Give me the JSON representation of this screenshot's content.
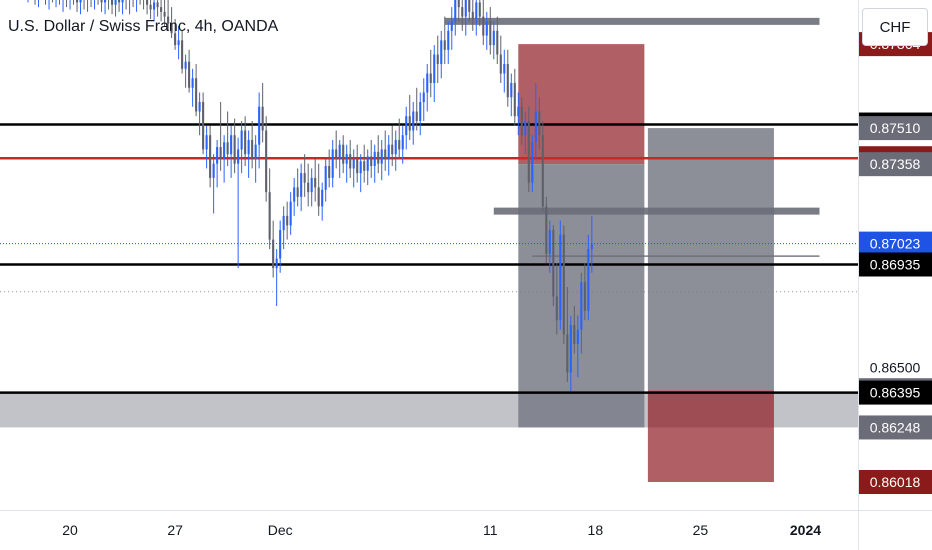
{
  "header": {
    "title": "U.S. Dollar / Swiss Franc, 4h, OANDA"
  },
  "price_axis": {
    "currency_label": "CHF"
  },
  "colors": {
    "bull": "#2962ff",
    "bear": "#5d606b",
    "level_black": "#000000",
    "level_red": "#c62828",
    "zone_gray": "#787b86",
    "zone_red": "#8e1b22",
    "last_price": "#1e53e5"
  },
  "chart_data": {
    "type": "candlestick",
    "title": "U.S. Dollar / Swiss Franc, 4h, OANDA",
    "xlabel": "",
    "ylabel": "",
    "ylim": [
      0.859,
      0.8805
    ],
    "x_ticks": [
      {
        "label": "20",
        "i": 18
      },
      {
        "label": "27",
        "i": 48
      },
      {
        "label": "Dec",
        "i": 78
      },
      {
        "label": "11",
        "i": 138
      },
      {
        "label": "18",
        "i": 168
      },
      {
        "label": "25",
        "i": 198
      },
      {
        "label": "2024",
        "i": 228
      }
    ],
    "x_index_range": [
      -2,
      243
    ],
    "last_price": 0.87023,
    "price_labels": [
      {
        "price": 0.87864,
        "style": "red"
      },
      {
        "price": 0.87525,
        "style": "black"
      },
      {
        "price": 0.8751,
        "style": "gray"
      },
      {
        "price": 0.87383,
        "style": "red"
      },
      {
        "price": 0.87358,
        "style": "gray"
      },
      {
        "price": 0.87023,
        "style": "blue"
      },
      {
        "price": 0.86935,
        "style": "black"
      },
      {
        "price": 0.865,
        "style": "plain"
      },
      {
        "price": 0.86405,
        "style": "gray"
      },
      {
        "price": 0.86395,
        "style": "black"
      },
      {
        "price": 0.86248,
        "style": "gray"
      },
      {
        "price": 0.86018,
        "style": "red"
      }
    ],
    "horizontal_levels": [
      {
        "price": 0.87525,
        "color": "black"
      },
      {
        "price": 0.87383,
        "color": "red"
      },
      {
        "price": 0.86935,
        "color": "black"
      },
      {
        "price": 0.86395,
        "color": "black"
      }
    ],
    "zones": [
      {
        "i1": 146,
        "i2": 182,
        "top": 0.87864,
        "bottom": 0.87358,
        "kind": "red"
      },
      {
        "i1": 146,
        "i2": 182,
        "top": 0.87358,
        "bottom": 0.86248,
        "kind": "gray"
      },
      {
        "i1": 183,
        "i2": 219,
        "top": 0.8751,
        "bottom": 0.86405,
        "kind": "gray"
      },
      {
        "i1": 183,
        "i2": 219,
        "top": 0.86405,
        "bottom": 0.86018,
        "kind": "red"
      },
      {
        "i1": -2,
        "i2": 243,
        "top": 0.86395,
        "bottom": 0.86248,
        "kind": "gray-band"
      }
    ],
    "segments": [
      {
        "i1": 125,
        "i2": 232,
        "price": 0.8796,
        "kind": "gray-thick"
      },
      {
        "i1": 139,
        "i2": 232,
        "price": 0.8716,
        "kind": "gray-thick"
      },
      {
        "i1": 150,
        "i2": 232,
        "price": 0.8697,
        "kind": "gray-thin"
      }
    ],
    "candles": [
      {
        "o": 0.881,
        "h": 0.8818,
        "l": 0.8806,
        "c": 0.8812
      },
      {
        "o": 0.8812,
        "h": 0.882,
        "l": 0.8808,
        "c": 0.8815
      },
      {
        "o": 0.8815,
        "h": 0.8822,
        "l": 0.8809,
        "c": 0.8811
      },
      {
        "o": 0.8811,
        "h": 0.8819,
        "l": 0.8807,
        "c": 0.8816
      },
      {
        "o": 0.8816,
        "h": 0.8823,
        "l": 0.881,
        "c": 0.8813
      },
      {
        "o": 0.8813,
        "h": 0.882,
        "l": 0.8806,
        "c": 0.8809
      },
      {
        "o": 0.8809,
        "h": 0.8816,
        "l": 0.8804,
        "c": 0.8812
      },
      {
        "o": 0.8812,
        "h": 0.8819,
        "l": 0.8807,
        "c": 0.881
      },
      {
        "o": 0.881,
        "h": 0.8817,
        "l": 0.8803,
        "c": 0.8808
      },
      {
        "o": 0.8808,
        "h": 0.8815,
        "l": 0.8802,
        "c": 0.8811
      },
      {
        "o": 0.8811,
        "h": 0.8818,
        "l": 0.8805,
        "c": 0.8809
      },
      {
        "o": 0.8809,
        "h": 0.8816,
        "l": 0.8803,
        "c": 0.8806
      },
      {
        "o": 0.8806,
        "h": 0.8814,
        "l": 0.8801,
        "c": 0.881
      },
      {
        "o": 0.881,
        "h": 0.8817,
        "l": 0.8804,
        "c": 0.8807
      },
      {
        "o": 0.8807,
        "h": 0.8814,
        "l": 0.8802,
        "c": 0.8809
      },
      {
        "o": 0.8809,
        "h": 0.8815,
        "l": 0.8803,
        "c": 0.8805
      },
      {
        "o": 0.8805,
        "h": 0.8812,
        "l": 0.88,
        "c": 0.8808
      },
      {
        "o": 0.8808,
        "h": 0.8814,
        "l": 0.8802,
        "c": 0.8806
      },
      {
        "o": 0.8806,
        "h": 0.8813,
        "l": 0.8801,
        "c": 0.8809
      },
      {
        "o": 0.8809,
        "h": 0.8815,
        "l": 0.8803,
        "c": 0.8806
      },
      {
        "o": 0.8806,
        "h": 0.8812,
        "l": 0.88,
        "c": 0.8804
      },
      {
        "o": 0.8804,
        "h": 0.8811,
        "l": 0.8799,
        "c": 0.8807
      },
      {
        "o": 0.8807,
        "h": 0.8813,
        "l": 0.8801,
        "c": 0.8805
      },
      {
        "o": 0.8805,
        "h": 0.8812,
        "l": 0.88,
        "c": 0.8808
      },
      {
        "o": 0.8808,
        "h": 0.8814,
        "l": 0.8802,
        "c": 0.8806
      },
      {
        "o": 0.8806,
        "h": 0.8813,
        "l": 0.8801,
        "c": 0.8809
      },
      {
        "o": 0.8809,
        "h": 0.8815,
        "l": 0.8803,
        "c": 0.8806
      },
      {
        "o": 0.8806,
        "h": 0.8812,
        "l": 0.88,
        "c": 0.8804
      },
      {
        "o": 0.8804,
        "h": 0.8811,
        "l": 0.8799,
        "c": 0.8807
      },
      {
        "o": 0.8807,
        "h": 0.8813,
        "l": 0.8801,
        "c": 0.8805
      },
      {
        "o": 0.8805,
        "h": 0.8811,
        "l": 0.8799,
        "c": 0.8803
      },
      {
        "o": 0.8803,
        "h": 0.881,
        "l": 0.8798,
        "c": 0.8806
      },
      {
        "o": 0.8806,
        "h": 0.8812,
        "l": 0.88,
        "c": 0.8804
      },
      {
        "o": 0.8804,
        "h": 0.8811,
        "l": 0.8799,
        "c": 0.8807
      },
      {
        "o": 0.8807,
        "h": 0.8813,
        "l": 0.8801,
        "c": 0.8805
      },
      {
        "o": 0.8805,
        "h": 0.8811,
        "l": 0.8799,
        "c": 0.8808
      },
      {
        "o": 0.8808,
        "h": 0.8814,
        "l": 0.8802,
        "c": 0.8806
      },
      {
        "o": 0.8806,
        "h": 0.8812,
        "l": 0.88,
        "c": 0.8809
      },
      {
        "o": 0.8809,
        "h": 0.8815,
        "l": 0.8803,
        "c": 0.8807
      },
      {
        "o": 0.8807,
        "h": 0.8813,
        "l": 0.8801,
        "c": 0.8805
      },
      {
        "o": 0.8805,
        "h": 0.8811,
        "l": 0.8799,
        "c": 0.8803
      },
      {
        "o": 0.8803,
        "h": 0.881,
        "l": 0.8797,
        "c": 0.8801
      },
      {
        "o": 0.8801,
        "h": 0.8808,
        "l": 0.8796,
        "c": 0.8804
      },
      {
        "o": 0.8804,
        "h": 0.881,
        "l": 0.8798,
        "c": 0.8802
      },
      {
        "o": 0.8802,
        "h": 0.8808,
        "l": 0.8796,
        "c": 0.88
      },
      {
        "o": 0.88,
        "h": 0.8806,
        "l": 0.8794,
        "c": 0.8798
      },
      {
        "o": 0.8798,
        "h": 0.8805,
        "l": 0.8792,
        "c": 0.8795
      },
      {
        "o": 0.8795,
        "h": 0.8802,
        "l": 0.8789,
        "c": 0.8791
      },
      {
        "o": 0.8791,
        "h": 0.8797,
        "l": 0.8784,
        "c": 0.8786
      },
      {
        "o": 0.8786,
        "h": 0.8794,
        "l": 0.878,
        "c": 0.8788
      },
      {
        "o": 0.8788,
        "h": 0.8792,
        "l": 0.8774,
        "c": 0.8776
      },
      {
        "o": 0.8776,
        "h": 0.8782,
        "l": 0.8768,
        "c": 0.8779
      },
      {
        "o": 0.8779,
        "h": 0.8784,
        "l": 0.8766,
        "c": 0.8768
      },
      {
        "o": 0.8768,
        "h": 0.8776,
        "l": 0.876,
        "c": 0.8772
      },
      {
        "o": 0.8772,
        "h": 0.8778,
        "l": 0.8756,
        "c": 0.8758
      },
      {
        "o": 0.8758,
        "h": 0.8766,
        "l": 0.8748,
        "c": 0.8762
      },
      {
        "o": 0.8762,
        "h": 0.8766,
        "l": 0.874,
        "c": 0.8742
      },
      {
        "o": 0.8742,
        "h": 0.8752,
        "l": 0.8734,
        "c": 0.8748
      },
      {
        "o": 0.8748,
        "h": 0.8752,
        "l": 0.8726,
        "c": 0.873
      },
      {
        "o": 0.873,
        "h": 0.874,
        "l": 0.8715,
        "c": 0.8736
      },
      {
        "o": 0.8736,
        "h": 0.8746,
        "l": 0.8726,
        "c": 0.8743
      },
      {
        "o": 0.8743,
        "h": 0.8762,
        "l": 0.8733,
        "c": 0.8738
      },
      {
        "o": 0.8738,
        "h": 0.8748,
        "l": 0.8728,
        "c": 0.8745
      },
      {
        "o": 0.8745,
        "h": 0.8758,
        "l": 0.8735,
        "c": 0.874
      },
      {
        "o": 0.874,
        "h": 0.8752,
        "l": 0.873,
        "c": 0.8748
      },
      {
        "o": 0.8748,
        "h": 0.8755,
        "l": 0.8732,
        "c": 0.8736
      },
      {
        "o": 0.8736,
        "h": 0.8747,
        "l": 0.8692,
        "c": 0.8742
      },
      {
        "o": 0.8742,
        "h": 0.8754,
        "l": 0.8732,
        "c": 0.875
      },
      {
        "o": 0.875,
        "h": 0.8756,
        "l": 0.8735,
        "c": 0.874
      },
      {
        "o": 0.874,
        "h": 0.875,
        "l": 0.873,
        "c": 0.8746
      },
      {
        "o": 0.8746,
        "h": 0.8754,
        "l": 0.8734,
        "c": 0.8738
      },
      {
        "o": 0.8738,
        "h": 0.8748,
        "l": 0.8728,
        "c": 0.8744
      },
      {
        "o": 0.8744,
        "h": 0.8766,
        "l": 0.8734,
        "c": 0.876
      },
      {
        "o": 0.876,
        "h": 0.877,
        "l": 0.8745,
        "c": 0.875
      },
      {
        "o": 0.875,
        "h": 0.8756,
        "l": 0.872,
        "c": 0.8724
      },
      {
        "o": 0.8724,
        "h": 0.8734,
        "l": 0.87,
        "c": 0.8704
      },
      {
        "o": 0.8704,
        "h": 0.8712,
        "l": 0.8688,
        "c": 0.8692
      },
      {
        "o": 0.8692,
        "h": 0.87,
        "l": 0.8676,
        "c": 0.8696
      },
      {
        "o": 0.8696,
        "h": 0.8712,
        "l": 0.869,
        "c": 0.8708
      },
      {
        "o": 0.8708,
        "h": 0.8718,
        "l": 0.87,
        "c": 0.8714
      },
      {
        "o": 0.8714,
        "h": 0.872,
        "l": 0.8704,
        "c": 0.871
      },
      {
        "o": 0.871,
        "h": 0.8724,
        "l": 0.8706,
        "c": 0.872
      },
      {
        "o": 0.872,
        "h": 0.873,
        "l": 0.8714,
        "c": 0.8726
      },
      {
        "o": 0.8726,
        "h": 0.8734,
        "l": 0.8718,
        "c": 0.8722
      },
      {
        "o": 0.8722,
        "h": 0.8736,
        "l": 0.8716,
        "c": 0.8732
      },
      {
        "o": 0.8732,
        "h": 0.874,
        "l": 0.8722,
        "c": 0.8728
      },
      {
        "o": 0.8728,
        "h": 0.8736,
        "l": 0.8718,
        "c": 0.8724
      },
      {
        "o": 0.8724,
        "h": 0.8734,
        "l": 0.8718,
        "c": 0.873
      },
      {
        "o": 0.873,
        "h": 0.8738,
        "l": 0.872,
        "c": 0.8726
      },
      {
        "o": 0.8726,
        "h": 0.8736,
        "l": 0.8714,
        "c": 0.8718
      },
      {
        "o": 0.8718,
        "h": 0.8728,
        "l": 0.8712,
        "c": 0.8725
      },
      {
        "o": 0.8725,
        "h": 0.8738,
        "l": 0.872,
        "c": 0.8735
      },
      {
        "o": 0.8735,
        "h": 0.8742,
        "l": 0.8726,
        "c": 0.873
      },
      {
        "o": 0.873,
        "h": 0.8746,
        "l": 0.8726,
        "c": 0.8742
      },
      {
        "o": 0.8742,
        "h": 0.875,
        "l": 0.8734,
        "c": 0.8738
      },
      {
        "o": 0.8738,
        "h": 0.8746,
        "l": 0.873,
        "c": 0.8744
      },
      {
        "o": 0.8744,
        "h": 0.8748,
        "l": 0.8732,
        "c": 0.8736
      },
      {
        "o": 0.8736,
        "h": 0.8744,
        "l": 0.8728,
        "c": 0.874
      },
      {
        "o": 0.874,
        "h": 0.8746,
        "l": 0.873,
        "c": 0.8734
      },
      {
        "o": 0.8734,
        "h": 0.8742,
        "l": 0.8726,
        "c": 0.8738
      },
      {
        "o": 0.8738,
        "h": 0.8744,
        "l": 0.8728,
        "c": 0.8732
      },
      {
        "o": 0.8732,
        "h": 0.874,
        "l": 0.8724,
        "c": 0.8737
      },
      {
        "o": 0.8737,
        "h": 0.8744,
        "l": 0.8728,
        "c": 0.8733
      },
      {
        "o": 0.8733,
        "h": 0.8742,
        "l": 0.8727,
        "c": 0.8739
      },
      {
        "o": 0.8739,
        "h": 0.8746,
        "l": 0.873,
        "c": 0.8735
      },
      {
        "o": 0.8735,
        "h": 0.8744,
        "l": 0.8728,
        "c": 0.8741
      },
      {
        "o": 0.8741,
        "h": 0.8748,
        "l": 0.8732,
        "c": 0.8736
      },
      {
        "o": 0.8736,
        "h": 0.8746,
        "l": 0.8729,
        "c": 0.8742
      },
      {
        "o": 0.8742,
        "h": 0.875,
        "l": 0.8733,
        "c": 0.8738
      },
      {
        "o": 0.8738,
        "h": 0.8748,
        "l": 0.8731,
        "c": 0.8744
      },
      {
        "o": 0.8744,
        "h": 0.8752,
        "l": 0.8735,
        "c": 0.874
      },
      {
        "o": 0.874,
        "h": 0.875,
        "l": 0.8733,
        "c": 0.8746
      },
      {
        "o": 0.8746,
        "h": 0.8755,
        "l": 0.8738,
        "c": 0.8742
      },
      {
        "o": 0.8742,
        "h": 0.8752,
        "l": 0.8736,
        "c": 0.8748
      },
      {
        "o": 0.8748,
        "h": 0.876,
        "l": 0.8742,
        "c": 0.8756
      },
      {
        "o": 0.8756,
        "h": 0.8765,
        "l": 0.8746,
        "c": 0.875
      },
      {
        "o": 0.875,
        "h": 0.8762,
        "l": 0.8744,
        "c": 0.8758
      },
      {
        "o": 0.8758,
        "h": 0.8768,
        "l": 0.875,
        "c": 0.8754
      },
      {
        "o": 0.8754,
        "h": 0.8766,
        "l": 0.8748,
        "c": 0.8762
      },
      {
        "o": 0.8762,
        "h": 0.8772,
        "l": 0.8754,
        "c": 0.8766
      },
      {
        "o": 0.8766,
        "h": 0.8778,
        "l": 0.8758,
        "c": 0.8774
      },
      {
        "o": 0.8774,
        "h": 0.8784,
        "l": 0.8764,
        "c": 0.877
      },
      {
        "o": 0.877,
        "h": 0.8786,
        "l": 0.8762,
        "c": 0.8782
      },
      {
        "o": 0.8782,
        "h": 0.879,
        "l": 0.877,
        "c": 0.8778
      },
      {
        "o": 0.8778,
        "h": 0.8792,
        "l": 0.8772,
        "c": 0.8788
      },
      {
        "o": 0.8788,
        "h": 0.8798,
        "l": 0.8778,
        "c": 0.8784
      },
      {
        "o": 0.8784,
        "h": 0.8796,
        "l": 0.8778,
        "c": 0.8792
      },
      {
        "o": 0.8792,
        "h": 0.8802,
        "l": 0.8784,
        "c": 0.8796
      },
      {
        "o": 0.8796,
        "h": 0.8814,
        "l": 0.879,
        "c": 0.8808
      },
      {
        "o": 0.8808,
        "h": 0.8822,
        "l": 0.8796,
        "c": 0.8802
      },
      {
        "o": 0.8802,
        "h": 0.8814,
        "l": 0.8792,
        "c": 0.8798
      },
      {
        "o": 0.8798,
        "h": 0.881,
        "l": 0.879,
        "c": 0.8806
      },
      {
        "o": 0.8806,
        "h": 0.8815,
        "l": 0.8796,
        "c": 0.88
      },
      {
        "o": 0.88,
        "h": 0.881,
        "l": 0.8792,
        "c": 0.8797
      },
      {
        "o": 0.8797,
        "h": 0.8808,
        "l": 0.879,
        "c": 0.8804
      },
      {
        "o": 0.8804,
        "h": 0.8812,
        "l": 0.8794,
        "c": 0.8798
      },
      {
        "o": 0.8798,
        "h": 0.8806,
        "l": 0.8786,
        "c": 0.879
      },
      {
        "o": 0.879,
        "h": 0.88,
        "l": 0.8784,
        "c": 0.8796
      },
      {
        "o": 0.8796,
        "h": 0.8802,
        "l": 0.8782,
        "c": 0.8786
      },
      {
        "o": 0.8786,
        "h": 0.8796,
        "l": 0.878,
        "c": 0.8792
      },
      {
        "o": 0.8792,
        "h": 0.8798,
        "l": 0.8778,
        "c": 0.8782
      },
      {
        "o": 0.8782,
        "h": 0.879,
        "l": 0.877,
        "c": 0.8774
      },
      {
        "o": 0.8774,
        "h": 0.8784,
        "l": 0.8766,
        "c": 0.8778
      },
      {
        "o": 0.8778,
        "h": 0.8784,
        "l": 0.876,
        "c": 0.8764
      },
      {
        "o": 0.8764,
        "h": 0.8774,
        "l": 0.8756,
        "c": 0.877
      },
      {
        "o": 0.877,
        "h": 0.8776,
        "l": 0.8752,
        "c": 0.8756
      },
      {
        "o": 0.8756,
        "h": 0.8766,
        "l": 0.8748,
        "c": 0.876
      },
      {
        "o": 0.876,
        "h": 0.8764,
        "l": 0.8744,
        "c": 0.8748
      },
      {
        "o": 0.8748,
        "h": 0.8758,
        "l": 0.874,
        "c": 0.8754
      },
      {
        "o": 0.8754,
        "h": 0.876,
        "l": 0.8724,
        "c": 0.8728
      },
      {
        "o": 0.8728,
        "h": 0.8748,
        "l": 0.8724,
        "c": 0.8745
      },
      {
        "o": 0.8745,
        "h": 0.877,
        "l": 0.8738,
        "c": 0.8758
      },
      {
        "o": 0.8758,
        "h": 0.8764,
        "l": 0.8742,
        "c": 0.8748
      },
      {
        "o": 0.8748,
        "h": 0.8754,
        "l": 0.8716,
        "c": 0.8718
      },
      {
        "o": 0.8718,
        "h": 0.8722,
        "l": 0.8694,
        "c": 0.8698
      },
      {
        "o": 0.8698,
        "h": 0.8712,
        "l": 0.869,
        "c": 0.8708
      },
      {
        "o": 0.8708,
        "h": 0.871,
        "l": 0.8676,
        "c": 0.868
      },
      {
        "o": 0.868,
        "h": 0.8694,
        "l": 0.8664,
        "c": 0.867
      },
      {
        "o": 0.867,
        "h": 0.8712,
        "l": 0.8666,
        "c": 0.8706
      },
      {
        "o": 0.8706,
        "h": 0.871,
        "l": 0.866,
        "c": 0.8664
      },
      {
        "o": 0.8664,
        "h": 0.8684,
        "l": 0.8644,
        "c": 0.8648
      },
      {
        "o": 0.8648,
        "h": 0.8672,
        "l": 0.864,
        "c": 0.8668
      },
      {
        "o": 0.8668,
        "h": 0.8676,
        "l": 0.8656,
        "c": 0.866
      },
      {
        "o": 0.866,
        "h": 0.8672,
        "l": 0.8646,
        "c": 0.8666
      },
      {
        "o": 0.8666,
        "h": 0.869,
        "l": 0.8656,
        "c": 0.8686
      },
      {
        "o": 0.8686,
        "h": 0.8694,
        "l": 0.867,
        "c": 0.8674
      },
      {
        "o": 0.8674,
        "h": 0.8706,
        "l": 0.867,
        "c": 0.87
      },
      {
        "o": 0.87,
        "h": 0.8714,
        "l": 0.869,
        "c": 0.8702
      }
    ]
  }
}
